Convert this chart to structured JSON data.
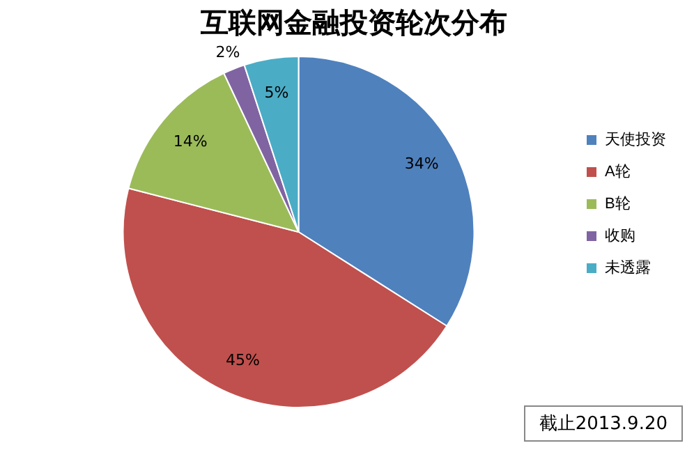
{
  "chart_data": {
    "type": "pie",
    "title": "互联网金融投资轮次分布",
    "categories": [
      "天使投资",
      "A轮",
      "B轮",
      "收购",
      "未透露"
    ],
    "values": [
      34,
      45,
      14,
      2,
      5
    ],
    "value_labels": [
      "34%",
      "45%",
      "14%",
      "2%",
      "5%"
    ],
    "colors": [
      "#4f81bd",
      "#c0504d",
      "#9bbb59",
      "#8064a2",
      "#4bacc6"
    ],
    "legend": "right",
    "annotations": [
      "截止2013.9.20"
    ]
  }
}
